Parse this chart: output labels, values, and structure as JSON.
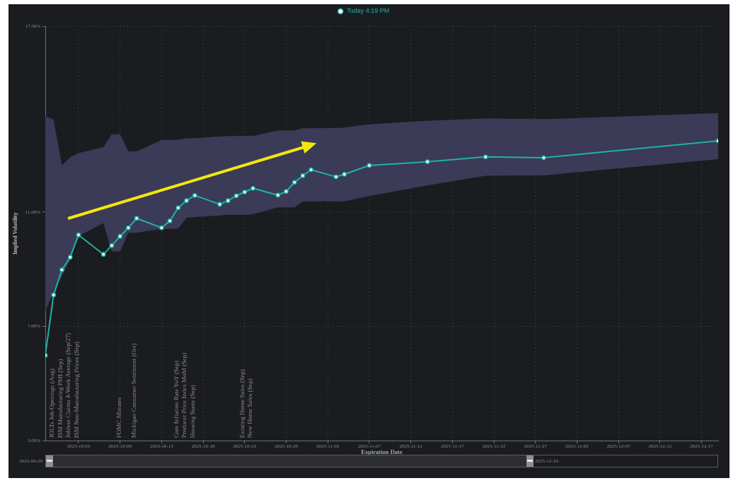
{
  "chart_data": {
    "type": "line",
    "xlabel": "Expiration Date",
    "ylabel": "Implied Volatility",
    "x": [
      "2025-09-29",
      "2025-09-30",
      "2025-10-01",
      "2025-10-02",
      "2025-10-03",
      "2025-10-06",
      "2025-10-07",
      "2025-10-08",
      "2025-10-09",
      "2025-10-10",
      "2025-10-13",
      "2025-10-14",
      "2025-10-15",
      "2025-10-16",
      "2025-10-17",
      "2025-10-20",
      "2025-10-21",
      "2025-10-22",
      "2025-10-23",
      "2025-10-24",
      "2025-10-27",
      "2025-10-28",
      "2025-10-29",
      "2025-10-30",
      "2025-10-31",
      "2025-11-03",
      "2025-11-04",
      "2025-11-07",
      "2025-11-14",
      "2025-11-21",
      "2025-11-28",
      "2025-12-19"
    ],
    "series": [
      {
        "name": "Today 4:19 PM",
        "color": "#1fb3a3",
        "values": [
          6.08,
          8.19,
          9.07,
          9.51,
          10.29,
          9.61,
          9.92,
          10.24,
          10.54,
          10.87,
          10.54,
          10.78,
          11.24,
          11.49,
          11.67,
          11.36,
          11.49,
          11.66,
          11.79,
          11.92,
          11.68,
          11.81,
          12.13,
          12.36,
          12.57,
          12.32,
          12.41,
          12.72,
          12.85,
          13.02,
          12.99,
          13.58
        ],
        "lower": [
          7.62,
          8.28,
          8.85,
          9.43,
          10.25,
          10.7,
          9.71,
          9.71,
          10.36,
          10.37,
          10.5,
          10.5,
          10.51,
          10.89,
          10.91,
          10.97,
          10.99,
          10.99,
          10.99,
          11.01,
          11.25,
          11.25,
          11.25,
          11.46,
          11.46,
          11.46,
          11.46,
          11.65,
          12.02,
          12.36,
          12.37,
          12.94
        ],
        "upper": [
          14.45,
          14.32,
          12.72,
          13.01,
          13.15,
          13.36,
          13.81,
          13.81,
          13.21,
          13.21,
          13.61,
          13.61,
          13.62,
          13.67,
          13.67,
          13.73,
          13.75,
          13.75,
          13.75,
          13.75,
          13.94,
          13.94,
          13.94,
          14.02,
          14.02,
          14.03,
          14.04,
          14.16,
          14.28,
          14.36,
          14.34,
          14.55
        ]
      }
    ],
    "xlim": [
      "2025-09-29",
      "2025-12-19"
    ],
    "xticks": [
      "2025-10-03",
      "2025-10-08",
      "2025-10-13",
      "2025-10-18",
      "2025-10-23",
      "2025-10-28",
      "2025-11-02",
      "2025-11-07",
      "2025-11-12",
      "2025-11-17",
      "2025-11-22",
      "2025-11-27",
      "2025-12-02",
      "2025-12-07",
      "2025-12-12",
      "2025-12-17"
    ],
    "ylim": [
      3.09,
      17.59
    ],
    "yticks": [
      {
        "value": 3.09,
        "label": "3.09%"
      },
      {
        "value": 7.09,
        "label": "7.09%"
      },
      {
        "value": 11.09,
        "label": "11.09%"
      },
      {
        "value": 17.59,
        "label": "17.59%"
      }
    ],
    "grid": true,
    "legend": "top",
    "marker": "circle",
    "annotations": [
      "JOLTs Job Openings (Aug)",
      "ISM Manufacturing PMI (Sep)",
      "Jobless Claims 4-Week Average (Sep/27)",
      "ISM Non-Manufacturing Prices (Sep)",
      "FOMC Minutes",
      "Michigan Consumer Sentiment (Oct)",
      "Core Inflation Rate YoY (Sep)",
      "Producer Price Index MoM (Sep)",
      "Housing Starts (Sep)",
      "Existing Home Sales (Sep)",
      "New Home Sales (Sep)",
      "2025-09-29",
      "2025-12-19"
    ]
  }
}
